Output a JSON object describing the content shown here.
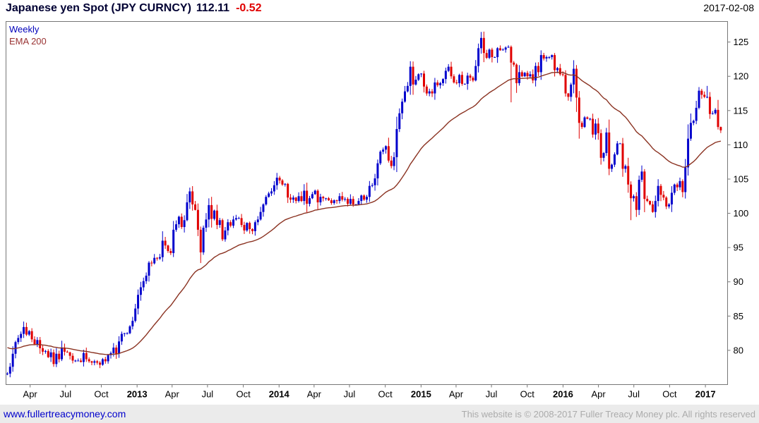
{
  "header": {
    "instrument": "Japanese yen Spot (JPY CURNCY)",
    "last": "112.11",
    "change": "-0.52",
    "date": "2017-02-08"
  },
  "legend": {
    "interval_label": "Weekly",
    "overlay_label": "EMA 200"
  },
  "footer": {
    "link": "www.fullertreacymoney.com",
    "copyright": "This website is © 2008-2017 Fuller Treacy Money plc. All rights reserved"
  },
  "colors": {
    "up": "#0000cc",
    "down": "#e00000",
    "ema": "#8b3322",
    "title": "#000033",
    "change": "#e00000",
    "axis_text": "#000000",
    "border": "#777777",
    "legend_interval": "#0000bb",
    "legend_overlay": "#993333",
    "link": "#0000cc",
    "copyright": "#ababab",
    "footer_bg": "#ebebeb"
  },
  "chart_data": {
    "type": "candlestick",
    "title": "Japanese yen Spot (JPY CURNCY)",
    "interval": "weekly",
    "overlay": "EMA 200",
    "ema_period_weeks": 40,
    "ylim": [
      75,
      128
    ],
    "yticks": [
      80,
      85,
      90,
      95,
      100,
      105,
      110,
      115,
      120,
      125
    ],
    "xticks": [
      {
        "label": "Apr",
        "date": "2012-04-01",
        "bold": false
      },
      {
        "label": "Jul",
        "date": "2012-07-01",
        "bold": false
      },
      {
        "label": "Oct",
        "date": "2012-10-01",
        "bold": false
      },
      {
        "label": "2013",
        "date": "2013-01-01",
        "bold": true
      },
      {
        "label": "Apr",
        "date": "2013-04-01",
        "bold": false
      },
      {
        "label": "Jul",
        "date": "2013-07-01",
        "bold": false
      },
      {
        "label": "Oct",
        "date": "2013-10-01",
        "bold": false
      },
      {
        "label": "2014",
        "date": "2014-01-01",
        "bold": true
      },
      {
        "label": "Apr",
        "date": "2014-04-01",
        "bold": false
      },
      {
        "label": "Jul",
        "date": "2014-07-01",
        "bold": false
      },
      {
        "label": "Oct",
        "date": "2014-10-01",
        "bold": false
      },
      {
        "label": "2015",
        "date": "2015-01-01",
        "bold": true
      },
      {
        "label": "Apr",
        "date": "2015-04-01",
        "bold": false
      },
      {
        "label": "Jul",
        "date": "2015-07-01",
        "bold": false
      },
      {
        "label": "Oct",
        "date": "2015-10-01",
        "bold": false
      },
      {
        "label": "2016",
        "date": "2016-01-01",
        "bold": true
      },
      {
        "label": "Apr",
        "date": "2016-04-01",
        "bold": false
      },
      {
        "label": "Jul",
        "date": "2016-07-01",
        "bold": false
      },
      {
        "label": "Oct",
        "date": "2016-10-01",
        "bold": false
      },
      {
        "label": "2017",
        "date": "2017-01-01",
        "bold": true
      }
    ],
    "week_start": "2012-01-30",
    "closes": [
      76.6,
      77.6,
      79.5,
      81.2,
      81.8,
      82.4,
      83.4,
      82.3,
      82.8,
      81.6,
      80.9,
      81.5,
      80.3,
      79.8,
      79.9,
      79.0,
      79.7,
      78.0,
      79.5,
      78.7,
      80.4,
      79.8,
      79.7,
      79.2,
      78.5,
      78.5,
      78.5,
      78.3,
      79.6,
      78.7,
      78.4,
      78.2,
      78.4,
      78.2,
      77.9,
      78.7,
      78.4,
      79.3,
      79.6,
      80.4,
      79.5,
      81.3,
      82.4,
      82.5,
      82.5,
      83.5,
      84.3,
      86.1,
      88.1,
      89.2,
      90.1,
      90.9,
      92.8,
      92.7,
      93.5,
      93.4,
      93.6,
      96.0,
      95.3,
      94.5,
      94.2,
      97.6,
      98.4,
      99.5,
      98.0,
      99.0,
      101.6,
      103.2,
      101.3,
      100.5,
      97.6,
      94.3,
      97.9,
      99.1,
      101.2,
      99.2,
      100.4,
      98.3,
      99.0,
      96.2,
      97.5,
      98.7,
      98.2,
      99.1,
      99.3,
      99.3,
      98.3,
      97.5,
      98.6,
      97.7,
      97.4,
      98.7,
      99.1,
      100.2,
      101.3,
      102.4,
      102.9,
      103.2,
      104.1,
      105.2,
      104.8,
      104.2,
      104.3,
      102.3,
      102.0,
      102.3,
      101.8,
      102.5,
      101.8,
      103.3,
      101.4,
      102.2,
      102.8,
      103.3,
      101.6,
      102.4,
      102.2,
      102.2,
      101.9,
      101.5,
      101.9,
      101.8,
      102.5,
      102.0,
      102.1,
      101.4,
      102.1,
      101.3,
      101.3,
      101.8,
      102.6,
      102.0,
      102.4,
      104.0,
      104.1,
      105.1,
      107.3,
      109.0,
      109.3,
      109.8,
      107.7,
      106.9,
      108.2,
      112.3,
      114.6,
      116.3,
      117.8,
      118.6,
      121.4,
      118.8,
      119.5,
      120.3,
      120.4,
      118.5,
      117.5,
      117.8,
      117.5,
      119.1,
      118.7,
      119.0,
      119.6,
      120.8,
      121.4,
      120.0,
      119.1,
      119.0,
      120.2,
      118.9,
      118.9,
      120.1,
      119.8,
      119.4,
      121.5,
      124.1,
      125.6,
      123.4,
      122.7,
      123.9,
      122.8,
      122.8,
      124.1,
      123.8,
      123.9,
      124.2,
      124.3,
      122.0,
      121.7,
      119.0,
      120.6,
      120.0,
      120.5,
      120.0,
      120.3,
      119.4,
      121.5,
      120.6,
      123.1,
      122.6,
      122.8,
      122.8,
      123.1,
      120.9,
      121.2,
      120.3,
      120.2,
      117.5,
      117.0,
      118.8,
      121.1,
      116.9,
      113.2,
      112.6,
      114.0,
      113.8,
      113.8,
      111.5,
      113.1,
      111.7,
      108.1,
      108.8,
      111.8,
      106.5,
      107.1,
      108.6,
      110.2,
      110.2,
      106.5,
      106.9,
      104.2,
      102.2,
      102.5,
      100.5,
      104.9,
      106.1,
      102.1,
      101.8,
      101.3,
      100.2,
      101.8,
      104.0,
      102.7,
      102.3,
      101.0,
      101.3,
      103.0,
      104.2,
      103.8,
      104.7,
      103.1,
      106.7,
      110.9,
      113.2,
      113.5,
      115.4,
      117.9,
      117.3,
      117.0,
      117.0,
      114.5,
      114.6,
      115.1,
      112.6,
      112.11
    ],
    "wick_overrides": [
      {
        "date": "2012-03-16",
        "high": 84.2
      },
      {
        "date": "2012-06-01",
        "low": 77.6
      },
      {
        "date": "2012-09-28",
        "low": 77.4
      },
      {
        "date": "2013-05-24",
        "high": 103.7
      },
      {
        "date": "2013-06-14",
        "low": 93.8
      },
      {
        "date": "2014-12-05",
        "high": 121.8
      },
      {
        "date": "2015-06-05",
        "high": 125.9
      },
      {
        "date": "2015-08-21",
        "low": 116.2
      },
      {
        "date": "2016-02-12",
        "low": 110.9
      },
      {
        "date": "2016-06-24",
        "low": 99.0
      },
      {
        "date": "2017-01-06",
        "high": 118.6
      }
    ]
  }
}
